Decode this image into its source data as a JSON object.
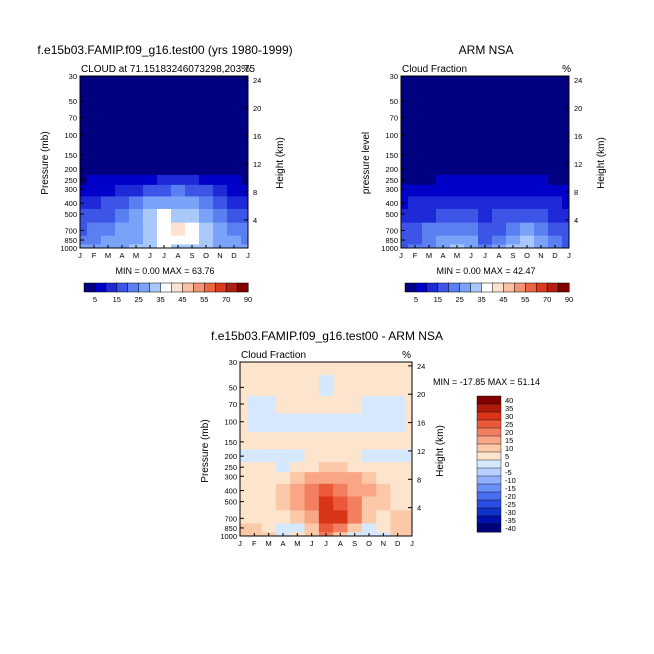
{
  "colors": {
    "cloud_palette": [
      "#000080",
      "#0000c8",
      "#1e2ad7",
      "#3c55e6",
      "#5a7ff0",
      "#7aa2f8",
      "#a9c8fc",
      "#ffffff",
      "#fde2cf",
      "#f8bfa5",
      "#f29474",
      "#ea6742",
      "#dc3a1d",
      "#b21f0f",
      "#800000"
    ],
    "diff_palette": [
      "#00007a",
      "#0010a8",
      "#1030c8",
      "#2a4ee0",
      "#4a6ef0",
      "#6a90f8",
      "#90b0fc",
      "#b8d0fe",
      "#d6e8fe",
      "#fde4cc",
      "#fbc8a8",
      "#f8a686",
      "#f28060",
      "#ea5a3a",
      "#d83418",
      "#b01a0a",
      "#800000"
    ]
  },
  "panels": [
    {
      "id": "model",
      "main_title": "f.e15b03.FAMIP.f09_g16.test00 (yrs 1980-1999)",
      "left_title": "CLOUD at 71.15183246073298,203.75",
      "right_title": "%",
      "ylabel": "Pressure (mb)",
      "ylabel2": "Height (km)",
      "stats": "MIN =   0.00 MAX =  63.76"
    },
    {
      "id": "obs",
      "main_title": "ARM NSA",
      "left_title": "Cloud Fraction",
      "right_title": "%",
      "ylabel": "pressure level",
      "ylabel2": "Height (km)",
      "stats": "MIN =   0.00 MAX =  42.47"
    },
    {
      "id": "diff",
      "main_title": "f.e15b03.FAMIP.f09_g16.test00 - ARM NSA",
      "left_title": "Cloud Fraction",
      "right_title": "%",
      "ylabel": "Pressure (mb)",
      "ylabel2": "Height (km)",
      "stats": "MIN = -17.85 MAX =  51.14"
    }
  ],
  "chart_data": [
    {
      "type": "heatmap",
      "title": "CLOUD at 71.15183246073298,203.75",
      "x_ticks": [
        "J",
        "F",
        "M",
        "A",
        "M",
        "J",
        "J",
        "A",
        "S",
        "O",
        "N",
        "D",
        "J"
      ],
      "pressure_ticks": [
        "30",
        "50",
        "70",
        "100",
        "150",
        "200",
        "250",
        "300",
        "400",
        "500",
        "700",
        "850",
        "1000"
      ],
      "height_ticks": [
        "24",
        "20",
        "16",
        "12",
        "8",
        "4"
      ],
      "months": [
        "J",
        "F",
        "M",
        "A",
        "M",
        "J",
        "J",
        "A",
        "S",
        "O",
        "N",
        "D",
        "J"
      ],
      "levels_mb": [
        1000,
        850,
        700,
        500,
        400,
        300,
        250,
        200,
        150,
        100,
        70,
        50,
        30
      ],
      "values": [
        [
          30,
          33,
          34,
          34,
          37,
          40,
          42,
          40,
          38,
          36,
          34,
          32,
          30
        ],
        [
          26,
          28,
          30,
          32,
          34,
          38,
          44,
          45,
          42,
          36,
          33,
          30,
          27
        ],
        [
          22,
          24,
          28,
          30,
          34,
          38,
          44,
          48,
          44,
          38,
          33,
          28,
          24
        ],
        [
          18,
          20,
          22,
          26,
          34,
          38,
          42,
          40,
          36,
          32,
          27,
          22,
          19
        ],
        [
          14,
          16,
          18,
          22,
          28,
          32,
          34,
          34,
          30,
          26,
          22,
          17,
          15
        ],
        [
          9,
          10,
          11,
          13,
          17,
          20,
          23,
          24,
          22,
          18,
          14,
          11,
          9
        ],
        [
          5,
          6,
          6,
          6,
          8,
          10,
          12,
          13,
          12,
          9,
          7,
          6,
          5
        ],
        [
          2,
          2,
          2,
          2,
          2,
          3,
          3,
          3,
          3,
          2,
          2,
          2,
          2
        ],
        [
          1,
          1,
          1,
          1,
          1,
          1,
          1,
          1,
          1,
          1,
          1,
          1,
          1
        ],
        [
          1,
          1,
          1,
          1,
          1,
          1,
          1,
          1,
          1,
          1,
          1,
          1,
          1
        ],
        [
          1,
          1,
          1,
          1,
          1,
          1,
          1,
          1,
          1,
          1,
          1,
          1,
          1
        ],
        [
          1,
          1,
          1,
          1,
          1,
          1,
          1,
          1,
          1,
          1,
          1,
          1,
          1
        ],
        [
          1,
          1,
          1,
          1,
          1,
          1,
          1,
          1,
          1,
          1,
          1,
          1,
          1
        ]
      ],
      "colorbar_labels": [
        "5",
        "15",
        "25",
        "35",
        "45",
        "55",
        "70",
        "90"
      ],
      "min": 0.0,
      "max": 63.76
    },
    {
      "type": "heatmap",
      "title": "ARM NSA Cloud Fraction",
      "x_ticks": [
        "J",
        "F",
        "M",
        "A",
        "M",
        "J",
        "J",
        "A",
        "S",
        "O",
        "N",
        "D",
        "J"
      ],
      "pressure_ticks": [
        "30",
        "50",
        "70",
        "100",
        "150",
        "200",
        "250",
        "300",
        "400",
        "500",
        "700",
        "850",
        "1000"
      ],
      "height_ticks": [
        "24",
        "20",
        "16",
        "12",
        "8",
        "4"
      ],
      "months": [
        "J",
        "F",
        "M",
        "A",
        "M",
        "J",
        "J",
        "A",
        "S",
        "O",
        "N",
        "D",
        "J"
      ],
      "levels_mb": [
        1000,
        850,
        700,
        500,
        400,
        300,
        250,
        200,
        150,
        100,
        70,
        50,
        30
      ],
      "values": [
        [
          22,
          24,
          28,
          34,
          36,
          32,
          24,
          30,
          38,
          40,
          34,
          26,
          22
        ],
        [
          20,
          22,
          26,
          30,
          34,
          30,
          20,
          26,
          34,
          38,
          32,
          24,
          20
        ],
        [
          18,
          20,
          24,
          26,
          28,
          24,
          18,
          22,
          28,
          32,
          28,
          22,
          18
        ],
        [
          14,
          15,
          17,
          19,
          20,
          18,
          16,
          18,
          20,
          22,
          20,
          17,
          14
        ],
        [
          11,
          12,
          13,
          14,
          14,
          13,
          13,
          14,
          15,
          15,
          14,
          13,
          11
        ],
        [
          7,
          8,
          9,
          10,
          10,
          9,
          9,
          10,
          11,
          11,
          10,
          9,
          7
        ],
        [
          4,
          5,
          5,
          6,
          6,
          6,
          6,
          7,
          7,
          7,
          6,
          5,
          4
        ],
        [
          2,
          2,
          2,
          2,
          2,
          2,
          2,
          2,
          2,
          2,
          2,
          2,
          2
        ],
        [
          1,
          1,
          1,
          1,
          1,
          1,
          1,
          1,
          1,
          1,
          1,
          1,
          1
        ],
        [
          1,
          1,
          1,
          1,
          1,
          1,
          1,
          1,
          1,
          1,
          1,
          1,
          1
        ],
        [
          1,
          1,
          1,
          1,
          1,
          1,
          1,
          1,
          1,
          1,
          1,
          1,
          1
        ],
        [
          1,
          1,
          1,
          1,
          1,
          1,
          1,
          1,
          1,
          1,
          1,
          1,
          1
        ],
        [
          1,
          1,
          1,
          1,
          1,
          1,
          1,
          1,
          1,
          1,
          1,
          1,
          1
        ]
      ],
      "colorbar_labels": [
        "5",
        "15",
        "25",
        "35",
        "45",
        "55",
        "70",
        "90"
      ],
      "min": 0.0,
      "max": 42.47
    },
    {
      "type": "heatmap",
      "title": "f.e15b03.FAMIP.f09_g16.test00 - ARM NSA",
      "x_ticks": [
        "J",
        "F",
        "M",
        "A",
        "M",
        "J",
        "J",
        "A",
        "S",
        "O",
        "N",
        "D",
        "J"
      ],
      "pressure_ticks": [
        "30",
        "50",
        "70",
        "100",
        "150",
        "200",
        "250",
        "300",
        "400",
        "500",
        "700",
        "850",
        "1000"
      ],
      "height_ticks": [
        "24",
        "20",
        "16",
        "12",
        "8",
        "4"
      ],
      "months": [
        "J",
        "F",
        "M",
        "A",
        "M",
        "J",
        "J",
        "A",
        "S",
        "O",
        "N",
        "D",
        "J"
      ],
      "levels_mb": [
        1000,
        850,
        700,
        500,
        400,
        300,
        250,
        200,
        150,
        100,
        70,
        50,
        30
      ],
      "values": [
        [
          8,
          9,
          6,
          0,
          1,
          8,
          18,
          10,
          0,
          -4,
          0,
          6,
          8
        ],
        [
          6,
          6,
          4,
          0,
          0,
          8,
          24,
          19,
          8,
          -2,
          1,
          6,
          7
        ],
        [
          4,
          4,
          4,
          4,
          6,
          14,
          26,
          26,
          16,
          6,
          5,
          6,
          6
        ],
        [
          4,
          5,
          5,
          7,
          14,
          20,
          26,
          22,
          16,
          10,
          7,
          5,
          5
        ],
        [
          3,
          4,
          5,
          8,
          14,
          19,
          21,
          20,
          15,
          11,
          8,
          4,
          4
        ],
        [
          2,
          2,
          2,
          3,
          7,
          11,
          14,
          14,
          11,
          7,
          4,
          2,
          2
        ],
        [
          1,
          1,
          1,
          0,
          2,
          4,
          6,
          6,
          5,
          2,
          1,
          1,
          1
        ],
        [
          0,
          0,
          0,
          0,
          0,
          1,
          1,
          1,
          1,
          0,
          0,
          0,
          0
        ],
        [
          2,
          2,
          2,
          2,
          2,
          2,
          2,
          2,
          2,
          2,
          2,
          2,
          2
        ],
        [
          2,
          -1,
          -1,
          -1,
          -1,
          -1,
          -1,
          -1,
          -1,
          -1,
          -1,
          -1,
          2
        ],
        [
          1,
          -1,
          -1,
          1,
          1,
          1,
          1,
          1,
          1,
          -1,
          -1,
          -1,
          1
        ],
        [
          1,
          1,
          1,
          1,
          1,
          1,
          -1,
          1,
          1,
          1,
          1,
          1,
          1
        ],
        [
          1,
          1,
          1,
          1,
          1,
          1,
          1,
          1,
          1,
          1,
          1,
          1,
          1
        ]
      ],
      "colorbar_labels": [
        "40",
        "35",
        "30",
        "25",
        "20",
        "15",
        "10",
        "5",
        "0",
        "-5",
        "-10",
        "-15",
        "-20",
        "-25",
        "-30",
        "-35",
        "-40"
      ],
      "min": -17.85,
      "max": 51.14
    }
  ]
}
